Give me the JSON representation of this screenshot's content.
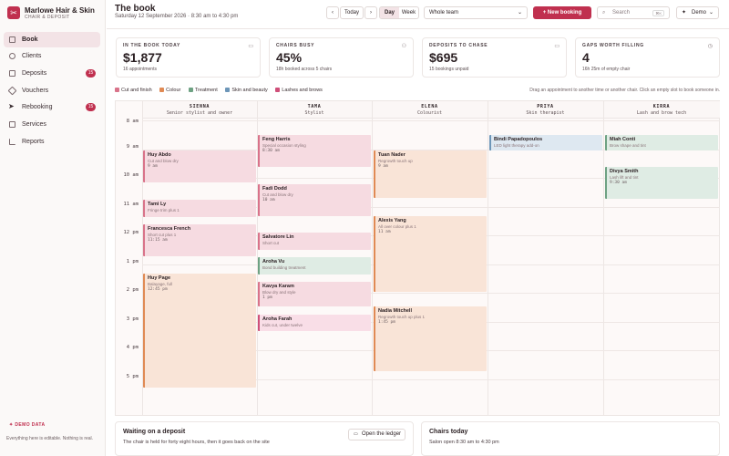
{
  "brand": {
    "name": "Marlowe Hair & Skin",
    "subtitle": "CHAIR & DEPOSIT"
  },
  "sidebar": {
    "items": [
      {
        "label": "Book",
        "icon": "calendar-icon"
      },
      {
        "label": "Clients",
        "icon": "user-icon"
      },
      {
        "label": "Deposits",
        "icon": "card-icon",
        "badge": "15"
      },
      {
        "label": "Vouchers",
        "icon": "tag-icon"
      },
      {
        "label": "Rebooking",
        "icon": "send-icon",
        "badge": "15"
      },
      {
        "label": "Services",
        "icon": "list-icon"
      },
      {
        "label": "Reports",
        "icon": "chart-icon"
      }
    ],
    "demo_tag": "DEMO DATA",
    "demo_note": "Everything here is editable. Nothing is real."
  },
  "header": {
    "title": "The book",
    "subtitle": "Saturday 12 September 2026 · 8:30 am to 4:30 pm",
    "prev": "‹",
    "next": "›",
    "today": "Today",
    "view_day": "Day",
    "view_week": "Week",
    "team_select": "Whole team",
    "new_booking": "New booking",
    "search_placeholder": "Search",
    "search_kbd": "⌘K",
    "demo_menu": "Demo"
  },
  "stats": [
    {
      "label": "IN THE BOOK TODAY",
      "value": "$1,877",
      "sub": "16 appointments"
    },
    {
      "label": "CHAIRS BUSY",
      "value": "45%",
      "sub": "18h booked across 5 chairs"
    },
    {
      "label": "DEPOSITS TO CHASE",
      "value": "$695",
      "sub": "15 bookings unpaid"
    },
    {
      "label": "GAPS WORTH FILLING",
      "value": "4",
      "sub": "16h 25m of empty chair"
    }
  ],
  "legend": [
    {
      "label": "Cut and finish",
      "color": "#d9738a"
    },
    {
      "label": "Colour",
      "color": "#e08a54"
    },
    {
      "label": "Treatment",
      "color": "#6ea283"
    },
    {
      "label": "Skin and beauty",
      "color": "#6d96b8"
    },
    {
      "label": "Lashes and brows",
      "color": "#cf4f79"
    }
  ],
  "hint": "Drag an appointment to another time or another chair. Click an empty slot to book someone in.",
  "calendar": {
    "staff": [
      {
        "name": "SIENNA",
        "role": "Senior stylist and owner"
      },
      {
        "name": "TAMA",
        "role": "Stylist"
      },
      {
        "name": "ELENA",
        "role": "Colourist"
      },
      {
        "name": "PRIYA",
        "role": "Skin therapist"
      },
      {
        "name": "KIRRA",
        "role": "Lash and brow tech"
      }
    ],
    "hours": [
      "8 am",
      "9 am",
      "10 am",
      "11 am",
      "12 pm",
      "1 pm",
      "2 pm",
      "3 pm",
      "4 pm",
      "5 pm"
    ],
    "appointments": [
      {
        "client": "Huy Abdo",
        "service": "Cut and blow dry",
        "time": "9 am"
      },
      {
        "client": "Tami Ly",
        "service": "Fringe trim plus 1",
        "time": ""
      },
      {
        "client": "Francesca French",
        "service": "Short cut plus 1",
        "time": "11:15 am"
      },
      {
        "client": "Huy Page",
        "service": "Balayage, full",
        "time": "12:45 pm"
      },
      {
        "client": "Feng Harris",
        "service": "Special occasion styling",
        "time": "8:30 am"
      },
      {
        "client": "Fadi Dodd",
        "service": "Cut and blow dry",
        "time": "10 am"
      },
      {
        "client": "Salvatore Lin",
        "service": "Short cut",
        "time": ""
      },
      {
        "client": "Aroha Vu",
        "service": "Bond building treatment",
        "time": ""
      },
      {
        "client": "Kavya Karam",
        "service": "Blow dry and style",
        "time": "1 pm"
      },
      {
        "client": "Aroha Farah",
        "service": "Kids cut, under twelve",
        "time": ""
      },
      {
        "client": "Tuan Nader",
        "service": "Regrowth touch up",
        "time": "9 am"
      },
      {
        "client": "Alexis Yang",
        "service": "All over colour plus 1",
        "time": "11 am"
      },
      {
        "client": "Nadia Mitchell",
        "service": "Regrowth touch up plus 1",
        "time": "1:45 pm"
      },
      {
        "client": "Bindi Papadopoulos",
        "service": "LED light therapy add-on",
        "time": ""
      },
      {
        "client": "Miah Conti",
        "service": "Brow shape and tint",
        "time": ""
      },
      {
        "client": "Divya Smith",
        "service": "Lash lift and tint",
        "time": "9:30 am"
      }
    ]
  },
  "panels": {
    "deposit": {
      "title": "Waiting on a deposit",
      "sub": "The chair is held for forty eight hours, then it goes back on the site",
      "button": "Open the ledger"
    },
    "chairs": {
      "title": "Chairs today",
      "sub": "Salon open 8:30 am to 4:30 pm"
    }
  }
}
